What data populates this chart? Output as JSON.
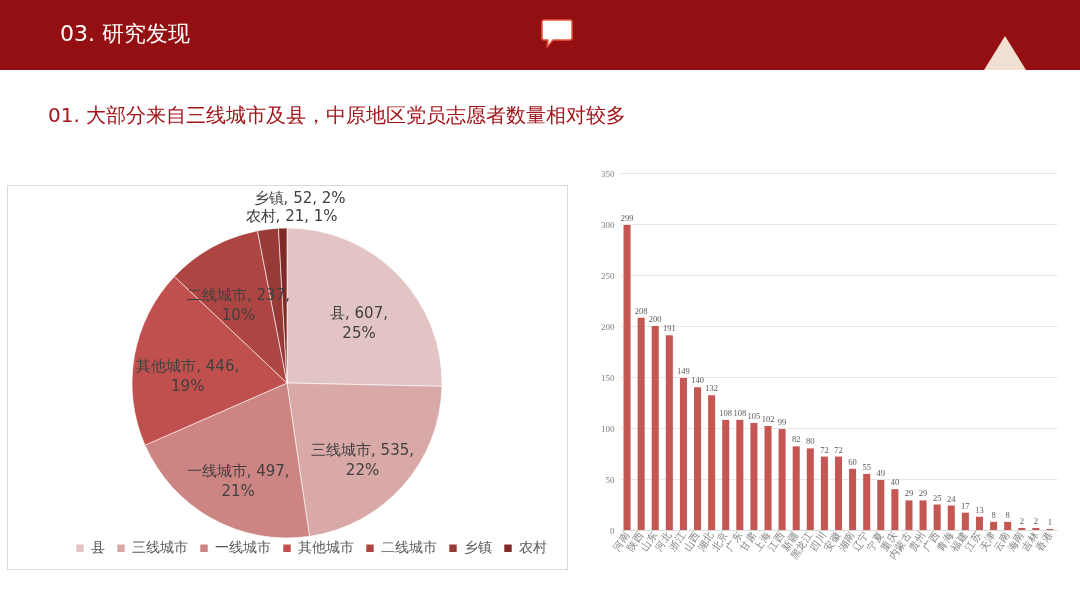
{
  "chart_data": [
    {
      "type": "pie",
      "title": "03. 研究发现",
      "subtitle": "01. 大部分来自三线城市及县，中原地区党员志愿者数量相对较多",
      "categories": [
        "县",
        "三线城市",
        "一线城市",
        "其他城市",
        "二线城市",
        "乡镇",
        "农村"
      ],
      "values": [
        607,
        535,
        497,
        446,
        237,
        52,
        21
      ],
      "colors": [
        "#e2c4c4",
        "#d9a9a8",
        "#cd8583",
        "#c0504d",
        "#ad4643",
        "#983b38",
        "#7f2a27"
      ],
      "value_labels": [
        "县, 607, 25%",
        "三线城市, 535, 22%",
        "一线城市, 497, 21%",
        "其他城市, 446, 19%",
        "二线城市, 237, 10%",
        "乡镇, 52, 2%",
        "农村, 21, 1%"
      ],
      "legend": "bottom"
    },
    {
      "type": "bar",
      "categories": [
        "河南",
        "陕西",
        "山东",
        "河北",
        "浙江",
        "山西",
        "湖北",
        "北京",
        "广东",
        "甘肃",
        "上海",
        "江西",
        "新疆",
        "黑龙江",
        "四川",
        "安徽",
        "湖南",
        "辽宁",
        "宁夏",
        "重庆",
        "内蒙古",
        "贵州",
        "广西",
        "青海",
        "福建",
        "江苏",
        "天津",
        "云南",
        "海南",
        "吉林",
        "香港"
      ],
      "values": [
        299,
        208,
        200,
        191,
        149,
        140,
        132,
        108,
        108,
        105,
        102,
        99,
        82,
        80,
        72,
        72,
        60,
        55,
        49,
        40,
        29,
        29,
        25,
        24,
        17,
        13,
        8,
        8,
        2,
        2,
        1
      ],
      "color": "#c55753",
      "ylim": [
        0,
        350
      ],
      "yticks": [
        0,
        50,
        100,
        150,
        200,
        250,
        300,
        350
      ],
      "grid": "y",
      "data_labels": true
    }
  ]
}
